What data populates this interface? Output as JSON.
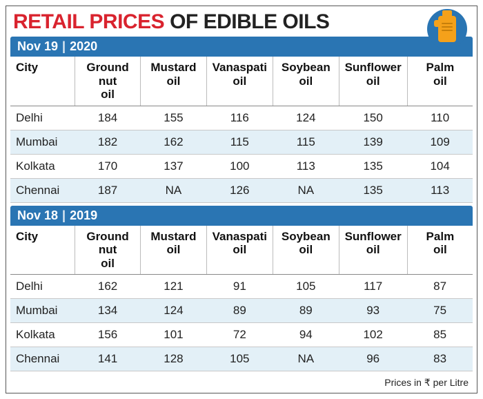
{
  "title": {
    "red": "RETAIL PRICES",
    "black": "OF EDIBLE OILS"
  },
  "columns": [
    "City",
    "Ground nut oil",
    "Mustard oil",
    "Vanaspati oil",
    "Soybean oil",
    "Sunflower oil",
    "Palm oil"
  ],
  "colors": {
    "header_bg": "#2a75b3",
    "title_red": "#d9232e",
    "alt_row": "#e3f0f7",
    "icon_fill": "#f5a11a"
  },
  "sections": [
    {
      "date_prefix": "Nov 19",
      "date_year": "2020",
      "rows": [
        {
          "city": "Delhi",
          "v": [
            "184",
            "155",
            "116",
            "124",
            "150",
            "110"
          ],
          "alt": false
        },
        {
          "city": "Mumbai",
          "v": [
            "182",
            "162",
            "115",
            "115",
            "139",
            "109"
          ],
          "alt": true
        },
        {
          "city": "Kolkata",
          "v": [
            "170",
            "137",
            "100",
            "113",
            "135",
            "104"
          ],
          "alt": false
        },
        {
          "city": "Chennai",
          "v": [
            "187",
            "NA",
            "126",
            "NA",
            "135",
            "113"
          ],
          "alt": true
        }
      ]
    },
    {
      "date_prefix": "Nov 18",
      "date_year": "2019",
      "rows": [
        {
          "city": "Delhi",
          "v": [
            "162",
            "121",
            "91",
            "105",
            "117",
            "87"
          ],
          "alt": false
        },
        {
          "city": "Mumbai",
          "v": [
            "134",
            "124",
            "89",
            "89",
            "93",
            "75"
          ],
          "alt": true
        },
        {
          "city": "Kolkata",
          "v": [
            "156",
            "101",
            "72",
            "94",
            "102",
            "85"
          ],
          "alt": false
        },
        {
          "city": "Chennai",
          "v": [
            "141",
            "128",
            "105",
            "NA",
            "96",
            "83"
          ],
          "alt": true
        }
      ]
    }
  ],
  "footer": "Prices in ₹ per Litre"
}
